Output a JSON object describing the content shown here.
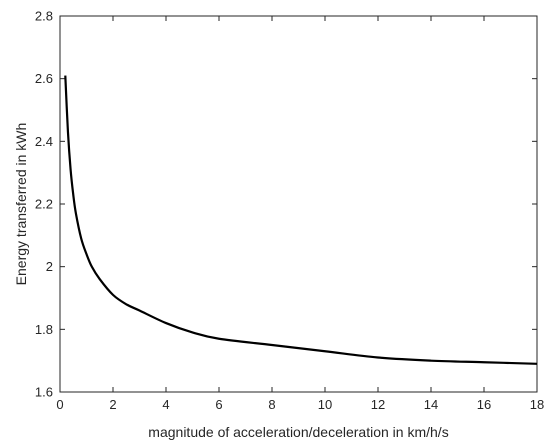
{
  "chart_data": {
    "type": "line",
    "title": "",
    "xlabel": "magnitude of acceleration/deceleration in km/h/s",
    "ylabel": "Energy transferred in kWh",
    "xlim": [
      0,
      18
    ],
    "ylim": [
      1.6,
      2.8
    ],
    "grid": false,
    "legend": "none",
    "xticks": [
      0,
      2,
      4,
      6,
      8,
      10,
      12,
      14,
      16,
      18
    ],
    "yticks": [
      1.6,
      1.8,
      2.0,
      2.2,
      2.4,
      2.6,
      2.8
    ],
    "xtick_labels": [
      "0",
      "2",
      "4",
      "6",
      "8",
      "10",
      "12",
      "14",
      "16",
      "18"
    ],
    "ytick_labels": [
      "1.6",
      "1.8",
      "2",
      "2.2",
      "2.4",
      "2.6",
      "2.8"
    ],
    "series": [
      {
        "color": "#000000",
        "x": [
          0.2,
          0.3,
          0.4,
          0.5,
          0.6,
          0.8,
          1.0,
          1.2,
          1.5,
          2.0,
          2.5,
          3.0,
          4.0,
          5.0,
          6.0,
          8.0,
          10.0,
          12.0,
          14.0,
          16.0,
          18.0
        ],
        "y": [
          2.61,
          2.43,
          2.31,
          2.23,
          2.17,
          2.09,
          2.04,
          2.0,
          1.96,
          1.91,
          1.88,
          1.86,
          1.82,
          1.79,
          1.77,
          1.75,
          1.73,
          1.71,
          1.7,
          1.695,
          1.69
        ]
      }
    ]
  }
}
